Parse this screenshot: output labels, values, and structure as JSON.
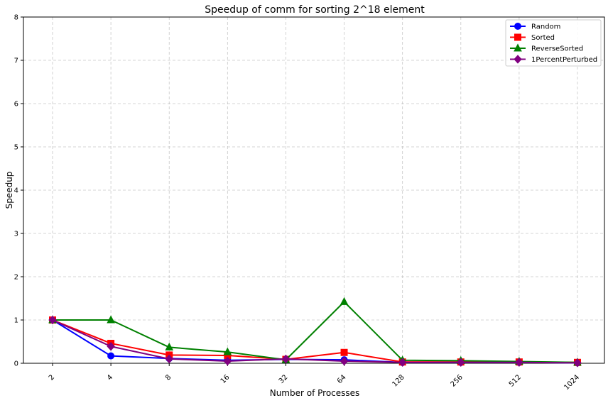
{
  "chart_data": {
    "type": "line",
    "title": "Speedup of comm for sorting 2^18 element",
    "xlabel": "Number of Processes",
    "ylabel": "Speedup",
    "categories": [
      "2",
      "4",
      "8",
      "16",
      "32",
      "64",
      "128",
      "256",
      "512",
      "1024"
    ],
    "ylim": [
      0,
      8
    ],
    "yticks": [
      0,
      1,
      2,
      3,
      4,
      5,
      6,
      7,
      8
    ],
    "grid": true,
    "legend_position": "top-right",
    "series": [
      {
        "name": "Random",
        "color": "#0000ff",
        "marker": "circle",
        "values": [
          1.0,
          0.17,
          0.11,
          0.07,
          0.09,
          0.08,
          0.02,
          0.02,
          0.02,
          0.01
        ]
      },
      {
        "name": "Sorted",
        "color": "#ff0000",
        "marker": "square",
        "values": [
          1.0,
          0.46,
          0.19,
          0.18,
          0.09,
          0.25,
          0.03,
          0.03,
          0.03,
          0.02
        ]
      },
      {
        "name": "ReverseSorted",
        "color": "#008000",
        "marker": "triangle",
        "values": [
          1.0,
          1.0,
          0.37,
          0.26,
          0.08,
          1.42,
          0.07,
          0.06,
          0.04,
          0.02
        ]
      },
      {
        "name": "1PercentPerturbed",
        "color": "#800080",
        "marker": "diamond",
        "values": [
          1.0,
          0.39,
          0.1,
          0.05,
          0.1,
          0.05,
          0.02,
          0.02,
          0.02,
          0.01
        ]
      }
    ]
  }
}
